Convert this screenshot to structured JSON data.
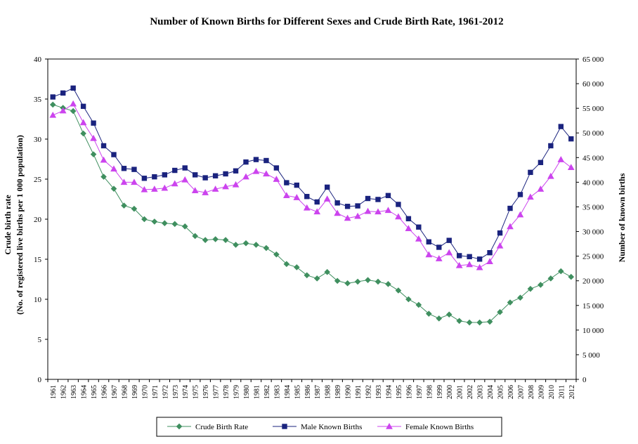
{
  "chart_data": {
    "type": "line",
    "title": "Number of Known Births for Different Sexes and Crude Birth Rate, 1961-2012",
    "ylabel_left": "Crude birth rate",
    "ylabel_left_sub": "(No. of registered live births per 1 000 population)",
    "ylabel_right": "Number of known births",
    "ylim_left": [
      0,
      40
    ],
    "ylim_right": [
      0,
      65000
    ],
    "yticks_left": [
      "0",
      "5",
      "10",
      "15",
      "20",
      "25",
      "30",
      "35",
      "40"
    ],
    "yticks_right": [
      "0",
      "5 000",
      "10 000",
      "15 000",
      "20 000",
      "25 000",
      "30 000",
      "35 000",
      "40 000",
      "45 000",
      "50 000",
      "55 000",
      "60 000",
      "65 000"
    ],
    "x": [
      "1961",
      "1962",
      "1963",
      "1964",
      "1965",
      "1966",
      "1967",
      "1968",
      "1969",
      "1970",
      "1971",
      "1972",
      "1973",
      "1974",
      "1975",
      "1976",
      "1977",
      "1978",
      "1979",
      "1980",
      "1981",
      "1982",
      "1983",
      "1984",
      "1985",
      "1986",
      "1987",
      "1988",
      "1989",
      "1990",
      "1991",
      "1992",
      "1993",
      "1994",
      "1995",
      "1996",
      "1997",
      "1998",
      "1999",
      "2000",
      "2001",
      "2002",
      "2003",
      "2004",
      "2005",
      "2006",
      "2007",
      "2008",
      "2009",
      "2010",
      "2011",
      "2012"
    ],
    "grid": false,
    "legend_position": "bottom",
    "series": [
      {
        "name": "Crude Birth Rate",
        "axis": "left",
        "color": "#3f8f5f",
        "marker": "diamond",
        "values": [
          34.3,
          33.9,
          33.5,
          30.7,
          28.1,
          25.3,
          23.8,
          21.7,
          21.3,
          20.0,
          19.7,
          19.5,
          19.4,
          19.1,
          17.9,
          17.4,
          17.5,
          17.4,
          16.8,
          17.0,
          16.8,
          16.4,
          15.6,
          14.4,
          14.0,
          13.0,
          12.6,
          13.4,
          12.3,
          12.0,
          12.2,
          12.4,
          12.2,
          11.9,
          11.1,
          10.0,
          9.3,
          8.2,
          7.6,
          8.1,
          7.3,
          7.1,
          7.1,
          7.2,
          8.4,
          9.6,
          10.2,
          11.3,
          11.8,
          12.6,
          13.5,
          12.8
        ]
      },
      {
        "name": "Male Known Births",
        "axis": "right",
        "color": "#1a237e",
        "marker": "square",
        "values": [
          57300,
          58100,
          59100,
          55400,
          52000,
          47400,
          45600,
          42800,
          42600,
          40800,
          41100,
          41500,
          42400,
          42900,
          41500,
          40900,
          41300,
          41700,
          42300,
          44100,
          44600,
          44400,
          42900,
          39900,
          39400,
          37100,
          36000,
          39000,
          35800,
          35100,
          35200,
          36700,
          36500,
          37300,
          35500,
          32600,
          30900,
          27900,
          26800,
          28200,
          25100,
          24900,
          24400,
          25700,
          29700,
          34700,
          37500,
          42000,
          44000,
          47400,
          51300,
          48800
        ]
      },
      {
        "name": "Female Known Births",
        "axis": "right",
        "color": "#cc44ee",
        "marker": "triangle",
        "values": [
          53600,
          54500,
          55900,
          52100,
          48900,
          44500,
          42700,
          40000,
          40000,
          38500,
          38600,
          38800,
          39700,
          40500,
          38300,
          37900,
          38600,
          39100,
          39500,
          41100,
          42200,
          41700,
          40600,
          37300,
          36900,
          34800,
          34000,
          36600,
          33700,
          32700,
          33100,
          34100,
          34000,
          34300,
          33000,
          30600,
          28500,
          25300,
          24500,
          25700,
          23100,
          23300,
          22700,
          23900,
          27100,
          31000,
          33400,
          37000,
          38600,
          41200,
          44600,
          43000
        ]
      }
    ]
  }
}
